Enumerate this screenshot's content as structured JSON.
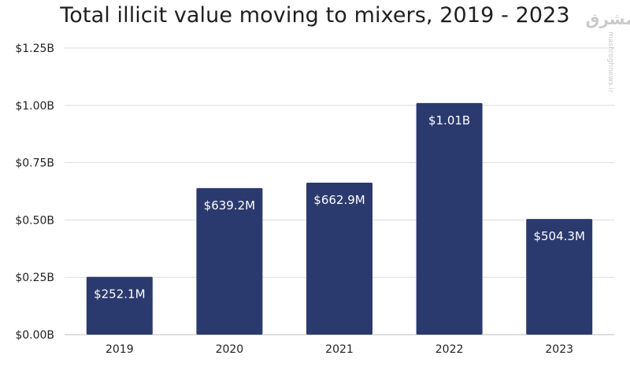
{
  "chart_data": {
    "type": "bar",
    "title": "Total illicit value moving to mixers, 2019 - 2023",
    "categories": [
      "2019",
      "2020",
      "2021",
      "2022",
      "2023"
    ],
    "values": [
      0.2521,
      0.6392,
      0.6629,
      1.01,
      0.5043
    ],
    "data_labels": [
      "$252.1M",
      "$639.2M",
      "$662.9M",
      "$1.01B",
      "$504.3M"
    ],
    "yticks": [
      0,
      0.25,
      0.5,
      0.75,
      1.0,
      1.25
    ],
    "ytick_labels": [
      "$0.00B",
      "$0.25B",
      "$0.50B",
      "$0.75B",
      "$1.00B",
      "$1.25B"
    ],
    "ylim": [
      0,
      1.25
    ],
    "grid": true,
    "bar_color": "#2b3a6e",
    "xlabel": "",
    "ylabel": ""
  },
  "watermark": {
    "logo": "مشرق",
    "text": "mashreghnews.ir"
  }
}
